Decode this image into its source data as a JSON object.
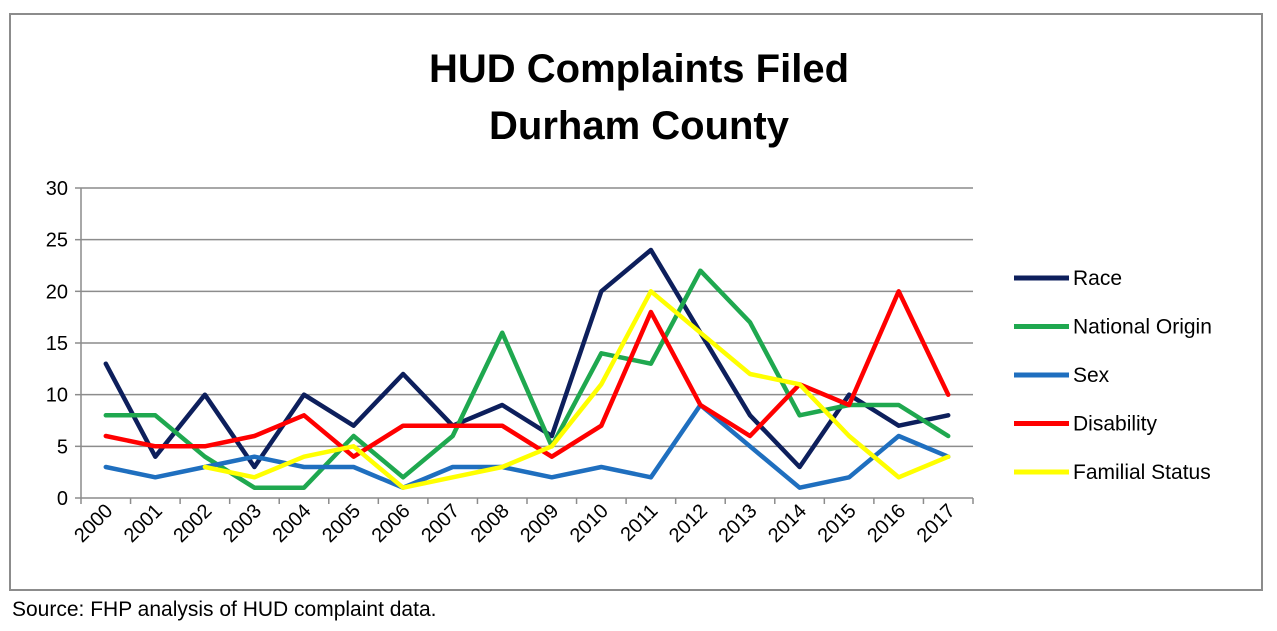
{
  "source_note": "Source: FHP analysis of HUD complaint data.",
  "chart_data": {
    "type": "line",
    "title": "HUD Complaints Filed",
    "subtitle": "Durham County",
    "xlabel": "",
    "ylabel": "",
    "ylim": [
      0,
      30
    ],
    "yticks": [
      0,
      5,
      10,
      15,
      20,
      25,
      30
    ],
    "grid": true,
    "legend_position": "right",
    "categories": [
      "2000",
      "2001",
      "2002",
      "2003",
      "2004",
      "2005",
      "2006",
      "2007",
      "2008",
      "2009",
      "2010",
      "2011",
      "2012",
      "2013",
      "2014",
      "2015",
      "2016",
      "2017"
    ],
    "series": [
      {
        "name": "Race",
        "color": "#0d1f5c",
        "values": [
          13,
          4,
          10,
          3,
          10,
          7,
          12,
          7,
          9,
          6,
          20,
          24,
          16,
          8,
          3,
          10,
          7,
          8
        ]
      },
      {
        "name": "National Origin",
        "color": "#1fa84f",
        "values": [
          8,
          8,
          4,
          1,
          1,
          6,
          2,
          6,
          16,
          5,
          14,
          13,
          22,
          17,
          8,
          9,
          9,
          6
        ]
      },
      {
        "name": "Sex",
        "color": "#1f6fbf",
        "values": [
          3,
          2,
          3,
          4,
          3,
          3,
          1,
          3,
          3,
          2,
          3,
          2,
          9,
          5,
          1,
          2,
          6,
          4
        ]
      },
      {
        "name": "Disability",
        "color": "#ff0000",
        "values": [
          6,
          5,
          5,
          6,
          8,
          4,
          7,
          7,
          7,
          4,
          7,
          18,
          9,
          6,
          11,
          9,
          20,
          10
        ]
      },
      {
        "name": "Familial Status",
        "color": "#ffff00",
        "values": [
          null,
          null,
          3,
          2,
          4,
          5,
          1,
          2,
          3,
          5,
          11,
          20,
          16,
          12,
          11,
          6,
          2,
          4
        ]
      }
    ]
  }
}
